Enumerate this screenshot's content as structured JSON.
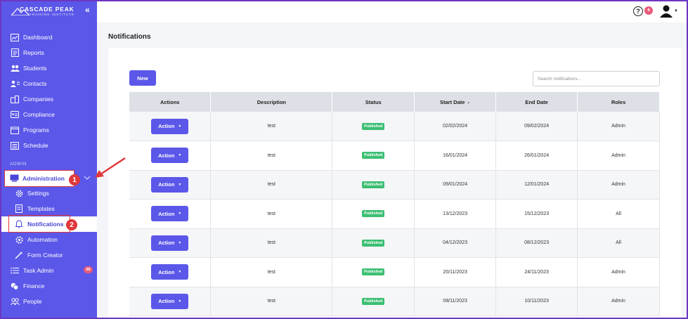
{
  "brand": {
    "name": "CASCADE PEAK",
    "tagline": "TRAINING INSTITUTE"
  },
  "sidebar": {
    "items": [
      {
        "label": "Dashboard",
        "icon": "chart-line-icon"
      },
      {
        "label": "Reports",
        "icon": "report-icon"
      },
      {
        "label": "Students",
        "icon": "users-icon"
      },
      {
        "label": "Contacts",
        "icon": "contacts-icon"
      },
      {
        "label": "Companies",
        "icon": "building-icon"
      },
      {
        "label": "Compliance",
        "icon": "id-card-icon"
      },
      {
        "label": "Programs",
        "icon": "calendar-icon"
      },
      {
        "label": "Schedule",
        "icon": "schedule-icon"
      }
    ],
    "section_label": "ADMIN",
    "admin": {
      "label": "Administration",
      "icon": "monitor-icon"
    },
    "admin_sub": [
      {
        "label": "Settings",
        "icon": "gear-icon"
      },
      {
        "label": "Templates",
        "icon": "template-icon"
      },
      {
        "label": "Notifications",
        "icon": "bell-icon"
      },
      {
        "label": "Automation",
        "icon": "automation-gear-icon"
      },
      {
        "label": "Form Creator",
        "icon": "magic-wand-icon"
      }
    ],
    "more": [
      {
        "label": "Task Admin",
        "icon": "list-icon",
        "badge": "68"
      },
      {
        "label": "Finance",
        "icon": "coins-icon"
      },
      {
        "label": "People",
        "icon": "people-icon"
      }
    ]
  },
  "callouts": [
    "1",
    "2"
  ],
  "topbar": {
    "help_badge": "6"
  },
  "page": {
    "title": "Notifications",
    "new_label": "New",
    "search_placeholder": "Search notifications..."
  },
  "table": {
    "columns": [
      "Actions",
      "Description",
      "Status",
      "Start Date",
      "End Date",
      "Roles"
    ],
    "action_label": "Action",
    "rows": [
      {
        "description": "test",
        "status": "Published",
        "start": "02/02/2024",
        "end": "09/02/2024",
        "roles": "Admin"
      },
      {
        "description": "test",
        "status": "Published",
        "start": "16/01/2024",
        "end": "26/01/2024",
        "roles": "Admin"
      },
      {
        "description": "test",
        "status": "Published",
        "start": "09/01/2024",
        "end": "12/01/2024",
        "roles": "Admin"
      },
      {
        "description": "test",
        "status": "Published",
        "start": "13/12/2023",
        "end": "15/12/2023",
        "roles": "All"
      },
      {
        "description": "test",
        "status": "Published",
        "start": "04/12/2023",
        "end": "08/12/2023",
        "roles": "All"
      },
      {
        "description": "test",
        "status": "Published",
        "start": "20/11/2023",
        "end": "24/11/2023",
        "roles": "Admin"
      },
      {
        "description": "test",
        "status": "Published",
        "start": "08/11/2023",
        "end": "10/11/2023",
        "roles": "Admin"
      }
    ]
  },
  "colors": {
    "sidebar": "#5b57e9",
    "accent": "#5b57e9",
    "status_published": "#3cbf73",
    "callout": "#e0383b",
    "badge": "#e85a7a"
  }
}
